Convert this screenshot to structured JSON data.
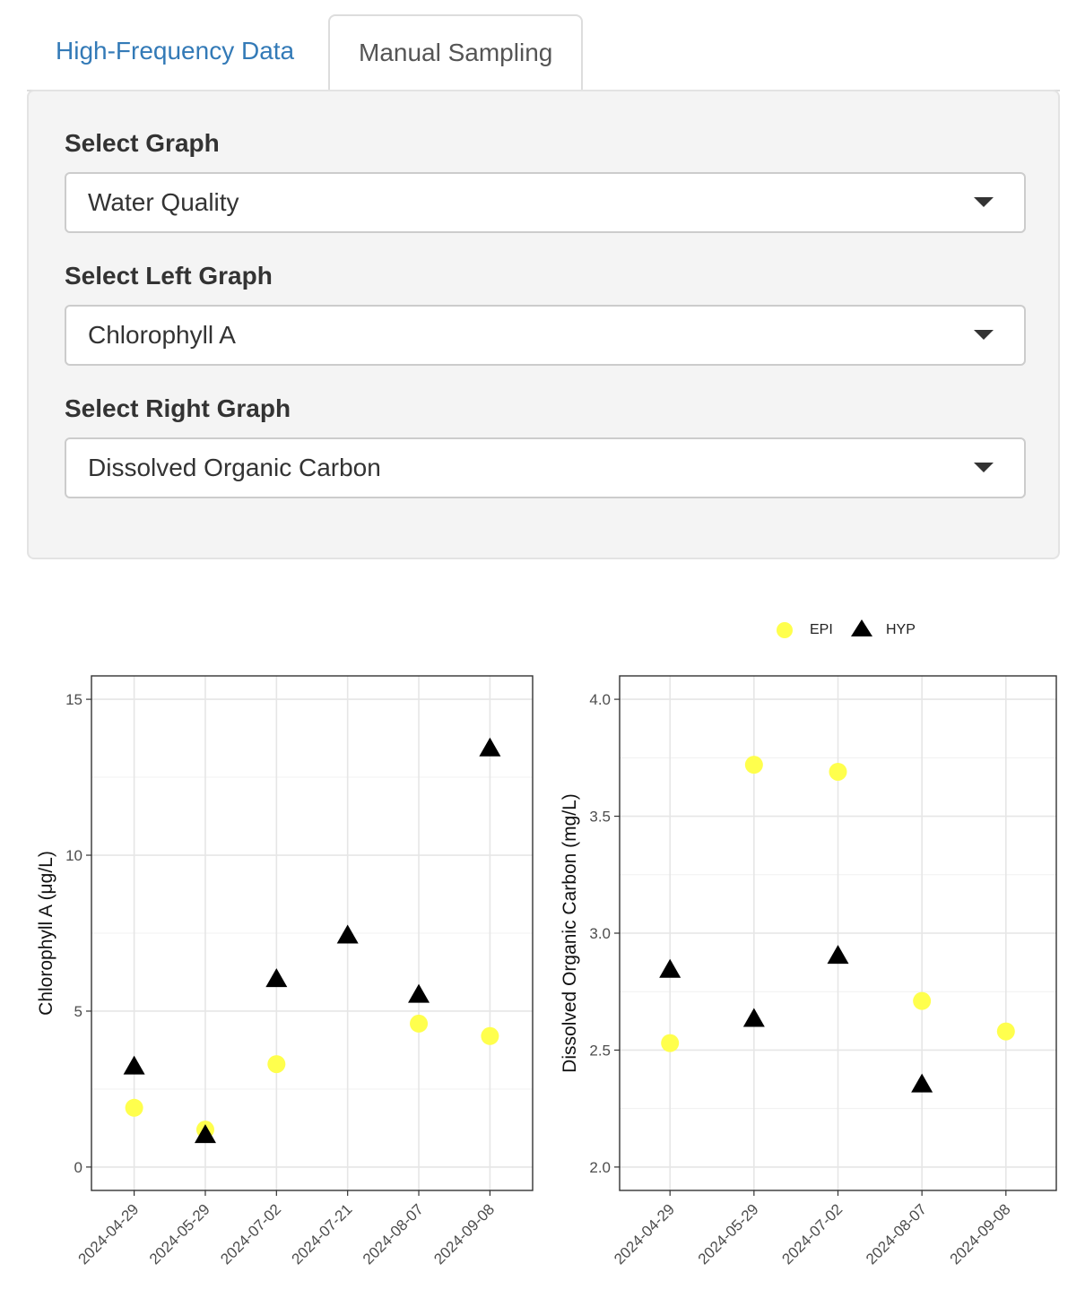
{
  "tabs": [
    {
      "label": "High-Frequency Data",
      "active": false
    },
    {
      "label": "Manual Sampling",
      "active": true
    }
  ],
  "form": {
    "graph": {
      "label": "Select Graph",
      "value": "Water Quality"
    },
    "left": {
      "label": "Select Left Graph",
      "value": "Chlorophyll A"
    },
    "right": {
      "label": "Select Right Graph",
      "value": "Dissolved Organic Carbon"
    }
  },
  "legend": {
    "items": [
      {
        "label": "EPI",
        "shape": "circle",
        "color": "#ffff4d"
      },
      {
        "label": "HYP",
        "shape": "triangle",
        "color": "#000000"
      }
    ]
  },
  "chart_data": [
    {
      "type": "scatter",
      "ylabel": "Chlorophyll A (μg/L)",
      "categories": [
        "2024-04-29",
        "2024-05-29",
        "2024-07-02",
        "2024-07-21",
        "2024-08-07",
        "2024-09-08"
      ],
      "yticks": [
        "0",
        "5",
        "10",
        "15"
      ],
      "ylim": [
        -0.75,
        15.75
      ],
      "grid": true,
      "series": [
        {
          "name": "EPI",
          "marker": "circle",
          "color": "#ffff4d",
          "values": [
            1.9,
            1.2,
            3.3,
            null,
            4.6,
            4.2
          ]
        },
        {
          "name": "HYP",
          "marker": "triangle",
          "color": "#000000",
          "values": [
            3.2,
            1.0,
            6.0,
            7.4,
            5.5,
            13.4
          ]
        }
      ]
    },
    {
      "type": "scatter",
      "ylabel": "Dissolved Organic Carbon (mg/L)",
      "categories": [
        "2024-04-29",
        "2024-05-29",
        "2024-07-02",
        "2024-08-07",
        "2024-09-08"
      ],
      "yticks": [
        "2.0",
        "2.5",
        "3.0",
        "3.5",
        "4.0"
      ],
      "ylim": [
        1.9,
        4.1
      ],
      "grid": true,
      "series": [
        {
          "name": "EPI",
          "marker": "circle",
          "color": "#ffff4d",
          "values": [
            2.53,
            3.72,
            3.69,
            2.71,
            2.58
          ]
        },
        {
          "name": "HYP",
          "marker": "triangle",
          "color": "#000000",
          "values": [
            2.84,
            2.63,
            2.9,
            2.35,
            null
          ]
        }
      ]
    }
  ]
}
